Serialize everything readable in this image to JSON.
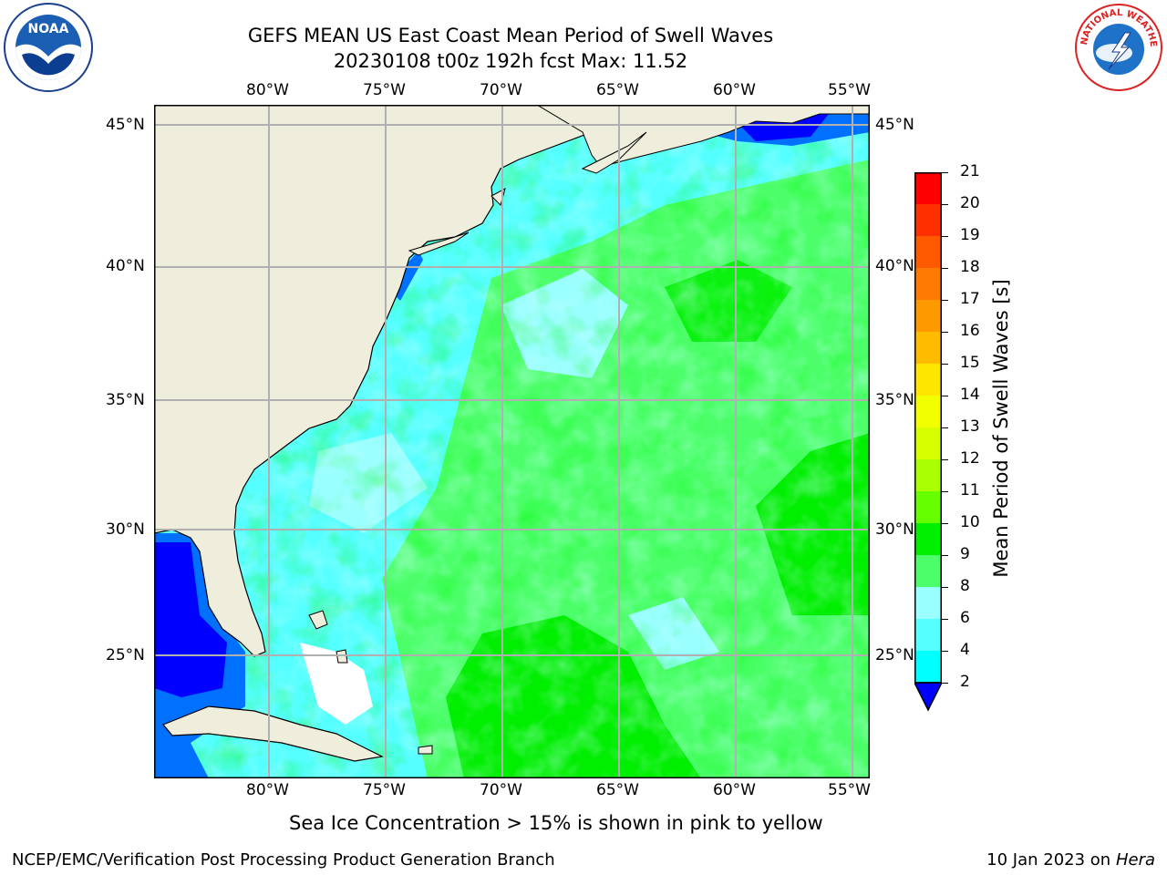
{
  "title": {
    "line1": "GEFS MEAN US East Coast Mean Period of Swell Waves",
    "line2": "20230108 t00z 192h fcst   Max: 11.52"
  },
  "logos": {
    "left": "NOAA",
    "right": "NATIONAL WEATHER SERVICE"
  },
  "map": {
    "lon_labels": [
      "80°W",
      "75°W",
      "70°W",
      "65°W",
      "60°W",
      "55°W"
    ],
    "lat_labels": [
      "45°N",
      "40°N",
      "35°N",
      "30°N",
      "25°N"
    ],
    "colors": {
      "land": "#efeddc",
      "grid": "#b0b0b0"
    }
  },
  "colorbar": {
    "label": "Mean Period of Swell Waves [s]",
    "ticks": [
      "21",
      "20",
      "19",
      "18",
      "17",
      "16",
      "15",
      "14",
      "13",
      "12",
      "11",
      "10",
      "9",
      "8",
      "6",
      "4",
      "2"
    ],
    "colors": [
      "#ff0000",
      "#ff3000",
      "#ff5a00",
      "#ff7a00",
      "#ff9900",
      "#ffbb00",
      "#ffe600",
      "#f2ff00",
      "#d8ff00",
      "#aaff00",
      "#66ff00",
      "#00ee00",
      "#4cff6a",
      "#99ffff",
      "#55ffff",
      "#00ffff",
      "#0070ff"
    ],
    "extend_color": "#0000ff"
  },
  "note": "Sea Ice Concentration > 15% is shown in pink to yellow",
  "footer": {
    "left": "NCEP/EMC/Verification Post Processing Product Generation Branch",
    "date": "10 Jan 2023 on ",
    "machine": "Hera"
  }
}
